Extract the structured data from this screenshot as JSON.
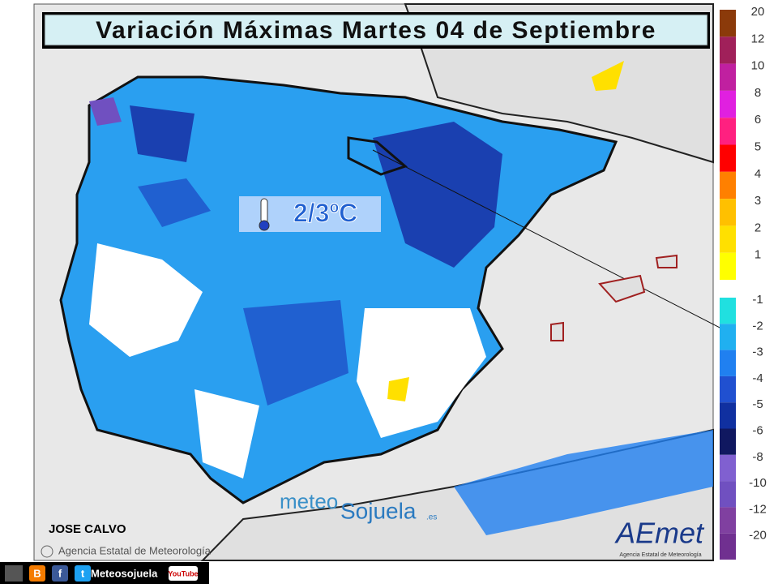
{
  "header": {
    "title": "Variación Máximas Martes 04 de Septiembre"
  },
  "map": {
    "annotation": "2/3ºC",
    "author": "JOSE CALVO",
    "copyright": "Agencia Estatal de Meteorología",
    "logo_meteo": {
      "part1": "meteo",
      "part2": "Sojuela",
      "part3": ".es"
    },
    "logo_aemet": {
      "name": "AEmet",
      "subtitle": "Agencia Estatal de Meteorología"
    }
  },
  "legend": {
    "positive": [
      {
        "label": "20",
        "color": "#8b3a0a"
      },
      {
        "label": "12",
        "color": "#a0205a"
      },
      {
        "label": "10",
        "color": "#c020a0"
      },
      {
        "label": "8",
        "color": "#e020e0"
      },
      {
        "label": "6",
        "color": "#ff2080"
      },
      {
        "label": "5",
        "color": "#ff0000"
      },
      {
        "label": "4",
        "color": "#ff8000"
      },
      {
        "label": "3",
        "color": "#ffc000"
      },
      {
        "label": "2",
        "color": "#ffe000"
      },
      {
        "label": "1",
        "color": "#ffff00"
      }
    ],
    "negative": [
      {
        "label": "-1",
        "color": "#20e0e0"
      },
      {
        "label": "-2",
        "color": "#20b0f0"
      },
      {
        "label": "-3",
        "color": "#2080f0"
      },
      {
        "label": "-4",
        "color": "#2050d0"
      },
      {
        "label": "-5",
        "color": "#1030a0"
      },
      {
        "label": "-6",
        "color": "#101860"
      },
      {
        "label": "-8",
        "color": "#8060d0"
      },
      {
        "label": "-10",
        "color": "#7050c0"
      },
      {
        "label": "-12",
        "color": "#8040a0"
      },
      {
        "label": "-20",
        "color": "#703090"
      }
    ]
  },
  "footer": {
    "icons": [
      "B",
      "f",
      "t"
    ],
    "account": "Meteosojuela",
    "youtube": "YouTube"
  }
}
